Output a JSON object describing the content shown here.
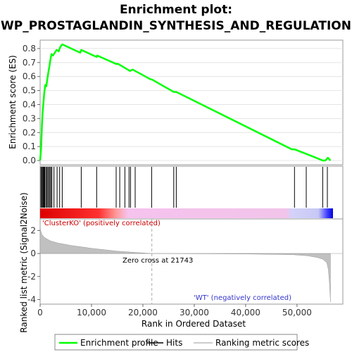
{
  "chart_data": {
    "type": "line",
    "title_line1": "Enrichment plot:",
    "title_line2": "WP_PROSTAGLANDIN_SYNTHESIS_AND_REGULATION",
    "top_panel": {
      "ylabel": "Enrichment score (ES)",
      "ylim": [
        -0.03,
        0.86
      ],
      "yticks": [
        "0.0",
        "0.1",
        "0.2",
        "0.3",
        "0.4",
        "0.5",
        "0.6",
        "0.7",
        "0.8"
      ],
      "line_color": "#00ff00",
      "series": [
        {
          "name": "Enrichment profile",
          "x": [
            0,
            200,
            350,
            500,
            650,
            800,
            1000,
            1200,
            1400,
            1600,
            1800,
            2000,
            2200,
            2500,
            3200,
            3600,
            3900,
            4300,
            7800,
            8000,
            11000,
            11100,
            14800,
            15200,
            17500,
            18000,
            21500,
            21700,
            26000,
            26500,
            49000,
            49500,
            53000,
            55000,
            55500,
            56000,
            56500
          ],
          "y": [
            0.0,
            0.1,
            0.25,
            0.35,
            0.41,
            0.48,
            0.54,
            0.53,
            0.58,
            0.63,
            0.67,
            0.72,
            0.76,
            0.75,
            0.79,
            0.78,
            0.81,
            0.83,
            0.77,
            0.79,
            0.74,
            0.75,
            0.69,
            0.69,
            0.64,
            0.65,
            0.58,
            0.58,
            0.49,
            0.49,
            0.08,
            0.08,
            0.03,
            0.0,
            0.0,
            0.02,
            0.0
          ]
        }
      ]
    },
    "hits": {
      "positions": [
        150,
        300,
        450,
        600,
        750,
        900,
        1100,
        1300,
        1500,
        1700,
        1900,
        2100,
        2300,
        2700,
        3300,
        3800,
        4300,
        8000,
        11000,
        14800,
        15500,
        16500,
        17300,
        17600,
        18500,
        21700,
        26000,
        26500,
        49500,
        51800,
        55000,
        55900
      ]
    },
    "rank_bar": {
      "positive_label": "'ClusterKO' (positively correlated)",
      "negative_label": "'WT' (negatively correlated)",
      "positive_color": "#dd0000",
      "negative_color": "#0000dd"
    },
    "bottom_panel": {
      "ylabel": "Ranked list metric (Signal2Noise)",
      "ylim": [
        -4.4,
        3.0
      ],
      "yticks": [
        "2",
        "0",
        "-2",
        "-4"
      ],
      "zero_cross_label": "Zero cross at 21743",
      "zero_cross": 21743,
      "metric_x": [
        0,
        100,
        300,
        600,
        1000,
        2000,
        3500,
        6000,
        10000,
        15000,
        21743,
        30000,
        40000,
        49000,
        52000,
        54000,
        55000,
        55800,
        56100,
        56300,
        56500
      ],
      "metric_y": [
        2.3,
        2.0,
        1.7,
        1.5,
        1.35,
        1.1,
        0.9,
        0.7,
        0.45,
        0.2,
        0.0,
        -0.02,
        -0.04,
        -0.1,
        -0.2,
        -0.35,
        -0.5,
        -0.8,
        -1.4,
        -2.5,
        -4.2
      ]
    },
    "xlabel": "Rank in Ordered Dataset",
    "xlim": [
      0,
      57000
    ],
    "xticks": [
      "0",
      "10,000",
      "20,000",
      "30,000",
      "40,000",
      "50,000"
    ],
    "legend": {
      "placement": "bottom",
      "items": [
        "Enrichment profile",
        "Hits",
        "Ranking metric scores"
      ]
    }
  }
}
